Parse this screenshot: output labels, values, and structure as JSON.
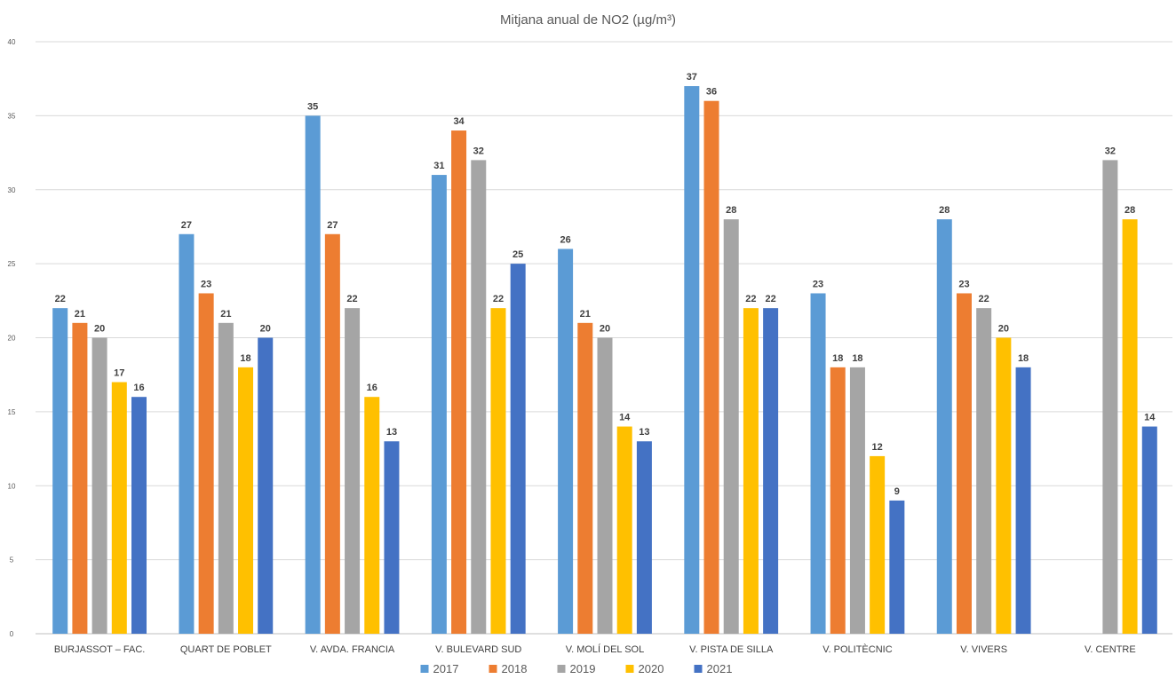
{
  "chart_data": {
    "type": "bar",
    "title": "Mitjana anual de NO2 (µg/m³)",
    "xlabel": "",
    "ylabel": "",
    "ylim": [
      0,
      40
    ],
    "yticks": [
      0,
      5,
      10,
      15,
      20,
      25,
      30,
      35,
      40
    ],
    "grid": true,
    "legend_position": "bottom",
    "categories": [
      "BURJASSOT – FAC.",
      "QUART DE POBLET",
      "V. AVDA. FRANCIA",
      "V. BULEVARD SUD",
      "V. MOLÍ DEL SOL",
      "V. PISTA DE SILLA",
      "V. POLITÈCNIC",
      "V. VIVERS",
      "V. CENTRE"
    ],
    "series": [
      {
        "name": "2017",
        "color": "#5B9BD5",
        "values": [
          22,
          27,
          35,
          31,
          26,
          37,
          23,
          28,
          null
        ]
      },
      {
        "name": "2018",
        "color": "#ED7D31",
        "values": [
          21,
          23,
          27,
          34,
          21,
          36,
          18,
          23,
          null
        ]
      },
      {
        "name": "2019",
        "color": "#A5A5A5",
        "values": [
          20,
          21,
          22,
          32,
          20,
          28,
          18,
          22,
          32
        ]
      },
      {
        "name": "2020",
        "color": "#FFC000",
        "values": [
          17,
          18,
          16,
          22,
          14,
          22,
          12,
          20,
          28
        ]
      },
      {
        "name": "2021",
        "color": "#4472C4",
        "values": [
          16,
          20,
          13,
          25,
          13,
          22,
          9,
          18,
          14
        ]
      }
    ]
  }
}
